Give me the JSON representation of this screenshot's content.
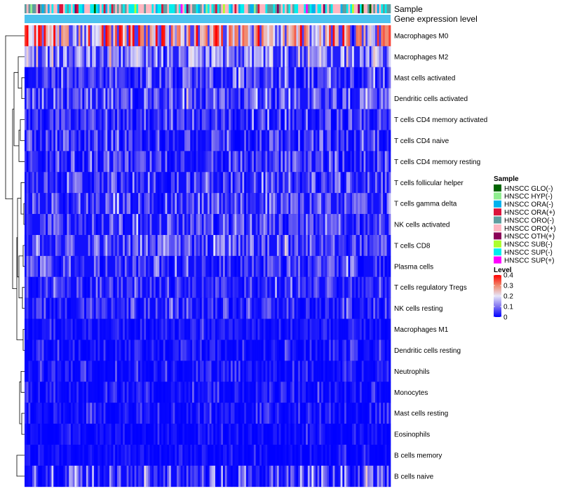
{
  "chart_data": {
    "type": "heatmap",
    "annotations": {
      "sample_label": "Sample",
      "level_bar_label": "Gene expression level"
    },
    "rows": [
      {
        "label": "Macrophages M0",
        "mean": 0.27,
        "sd": 0.08
      },
      {
        "label": "Macrophages M2",
        "mean": 0.13,
        "sd": 0.05
      },
      {
        "label": "Mast cells activated",
        "mean": 0.06,
        "sd": 0.05
      },
      {
        "label": "Dendritic cells activated",
        "mean": 0.08,
        "sd": 0.05
      },
      {
        "label": "T cells CD4 memory activated",
        "mean": 0.05,
        "sd": 0.05
      },
      {
        "label": "T cells CD4 naive",
        "mean": 0.04,
        "sd": 0.05
      },
      {
        "label": "T cells CD4 memory resting",
        "mean": 0.05,
        "sd": 0.05
      },
      {
        "label": "T cells follicular helper",
        "mean": 0.06,
        "sd": 0.05
      },
      {
        "label": "T cells gamma delta",
        "mean": 0.07,
        "sd": 0.05
      },
      {
        "label": "NK cells activated",
        "mean": 0.06,
        "sd": 0.05
      },
      {
        "label": "T cells CD8",
        "mean": 0.07,
        "sd": 0.05
      },
      {
        "label": "Plasma cells",
        "mean": 0.06,
        "sd": 0.05
      },
      {
        "label": "T cells regulatory  Tregs",
        "mean": 0.05,
        "sd": 0.04
      },
      {
        "label": "NK cells resting",
        "mean": 0.04,
        "sd": 0.04
      },
      {
        "label": "Macrophages M1",
        "mean": 0.02,
        "sd": 0.02
      },
      {
        "label": "Dendritic cells resting",
        "mean": 0.02,
        "sd": 0.03
      },
      {
        "label": "Neutrophils",
        "mean": 0.02,
        "sd": 0.03
      },
      {
        "label": "Monocytes",
        "mean": 0.02,
        "sd": 0.03
      },
      {
        "label": "Mast cells resting",
        "mean": 0.02,
        "sd": 0.03
      },
      {
        "label": "Eosinophils",
        "mean": 0.01,
        "sd": 0.02
      },
      {
        "label": "B cells memory",
        "mean": 0.01,
        "sd": 0.02
      },
      {
        "label": "B cells naive",
        "mean": 0.05,
        "sd": 0.08
      }
    ],
    "n_samples": 190,
    "color_scale": {
      "domain": [
        0,
        0.1,
        0.2,
        0.3,
        0.4
      ],
      "colors": [
        "#0000ff",
        "#7f72f0",
        "#e6e6fa",
        "#f08a6e",
        "#ff0000"
      ]
    },
    "legend_sample": {
      "title": "Sample",
      "items": [
        {
          "label": "HNSCC GLO(-)",
          "color": "#006400"
        },
        {
          "label": "HNSCC HYP(-)",
          "color": "#90ee90"
        },
        {
          "label": "HNSCC ORA(-)",
          "color": "#00b2ee"
        },
        {
          "label": "HNSCC ORA(+)",
          "color": "#dc143c"
        },
        {
          "label": "HNSCC ORO(-)",
          "color": "#5f9ea0"
        },
        {
          "label": "HNSCC ORO(+)",
          "color": "#ffb6c1"
        },
        {
          "label": "HNSCC OTH(+)",
          "color": "#8b0057"
        },
        {
          "label": "HNSCC SUB(-)",
          "color": "#adff2f"
        },
        {
          "label": "HNSCC SUP(-)",
          "color": "#00eeee"
        },
        {
          "label": "HNSCC SUP(+)",
          "color": "#ff00ff"
        }
      ]
    },
    "legend_level": {
      "title": "Level",
      "ticks": [
        "0.4",
        "0.3",
        "0.2",
        "0.1",
        "0"
      ],
      "tick_values": [
        0.4,
        0.3,
        0.2,
        0.1,
        0
      ]
    },
    "level_bar_color": "#4cc2ee"
  }
}
